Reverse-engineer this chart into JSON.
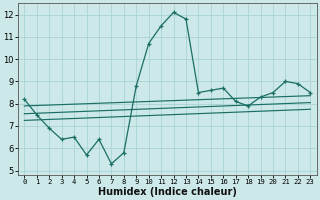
{
  "title": "",
  "xlabel": "Humidex (Indice chaleur)",
  "ylabel": "",
  "bg_color": "#cce8e8",
  "line_color": "#1a6e64",
  "xlim": [
    -0.5,
    23.5
  ],
  "ylim": [
    4.8,
    12.5
  ],
  "yticks": [
    5,
    6,
    7,
    8,
    9,
    10,
    11,
    12
  ],
  "xticks": [
    0,
    1,
    2,
    3,
    4,
    5,
    6,
    7,
    8,
    9,
    10,
    11,
    12,
    13,
    14,
    15,
    16,
    17,
    18,
    19,
    20,
    21,
    22,
    23
  ],
  "xtick_labels": [
    "0",
    "1",
    "2",
    "3",
    "4",
    "5",
    "6",
    "7",
    "8",
    "9",
    "10",
    "11",
    "12",
    "13",
    "14",
    "15",
    "16",
    "17",
    "18",
    "19",
    "20",
    "21",
    "22",
    "23"
  ],
  "line1_x": [
    0,
    1,
    2,
    3,
    4,
    5,
    6,
    7,
    8,
    9,
    10,
    11,
    12,
    13,
    14,
    15,
    16,
    17,
    18,
    19,
    20,
    21,
    22,
    23
  ],
  "line1_y": [
    8.2,
    7.5,
    6.9,
    6.4,
    6.5,
    5.7,
    6.4,
    5.3,
    5.8,
    8.8,
    10.7,
    11.5,
    12.1,
    11.8,
    8.5,
    8.6,
    8.7,
    8.1,
    7.9,
    8.3,
    8.5,
    9.0,
    8.9,
    8.5
  ],
  "line2_x": [
    0,
    1,
    2,
    3,
    4,
    5,
    6,
    7,
    8,
    9,
    10,
    11,
    12,
    13,
    14,
    15,
    16,
    17,
    18,
    19,
    20,
    21,
    22,
    23
  ],
  "line2_y": [
    7.9,
    7.92,
    7.94,
    7.96,
    7.98,
    8.0,
    8.02,
    8.04,
    8.06,
    8.08,
    8.1,
    8.12,
    8.14,
    8.16,
    8.18,
    8.2,
    8.22,
    8.24,
    8.26,
    8.28,
    8.3,
    8.32,
    8.34,
    8.36
  ],
  "line3_x": [
    0,
    23
  ],
  "line3_y": [
    7.55,
    8.05
  ],
  "line4_x": [
    0,
    23
  ],
  "line4_y": [
    7.25,
    7.75
  ],
  "grid_color": "#aad4d4",
  "grid_alpha": 0.9
}
